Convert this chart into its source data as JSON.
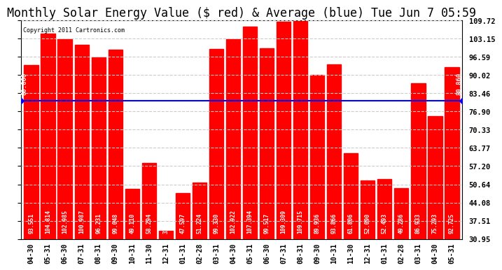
{
  "title": "Monthly Solar Energy Value ($ red) & Average (blue) Tue Jun 7 05:59",
  "copyright": "Copyright 2011 Cartronics.com",
  "categories": [
    "04-30",
    "05-31",
    "06-30",
    "07-31",
    "08-31",
    "09-30",
    "10-31",
    "11-30",
    "12-31",
    "01-31",
    "02-28",
    "03-31",
    "04-30",
    "05-31",
    "06-30",
    "07-31",
    "08-31",
    "09-30",
    "10-31",
    "11-30",
    "12-31",
    "01-31",
    "02-28",
    "03-31",
    "04-30",
    "05-31"
  ],
  "values": [
    93.551,
    104.814,
    102.985,
    100.987,
    96.231,
    99.048,
    49.11,
    58.294,
    33.91,
    47.597,
    51.224,
    99.33,
    102.922,
    107.394,
    99.517,
    109.309,
    109.715,
    89.936,
    93.866,
    61.806,
    52.09,
    52.493,
    49.286,
    86.933,
    75.293,
    92.725
  ],
  "average": 80.86,
  "bar_color": "#ff0000",
  "average_color": "#0000ff",
  "background_color": "#ffffff",
  "plot_bg_color": "#ffffff",
  "yticks_right": [
    30.95,
    37.51,
    44.08,
    50.64,
    57.2,
    63.77,
    70.33,
    76.9,
    83.46,
    90.02,
    96.59,
    103.15,
    109.72
  ],
  "ymin": 30.95,
  "ymax": 109.72,
  "grid_color": "#cccccc",
  "title_fontsize": 12,
  "label_fontsize": 7,
  "bar_label_fontsize": 5.8,
  "avg_label": "80.860"
}
